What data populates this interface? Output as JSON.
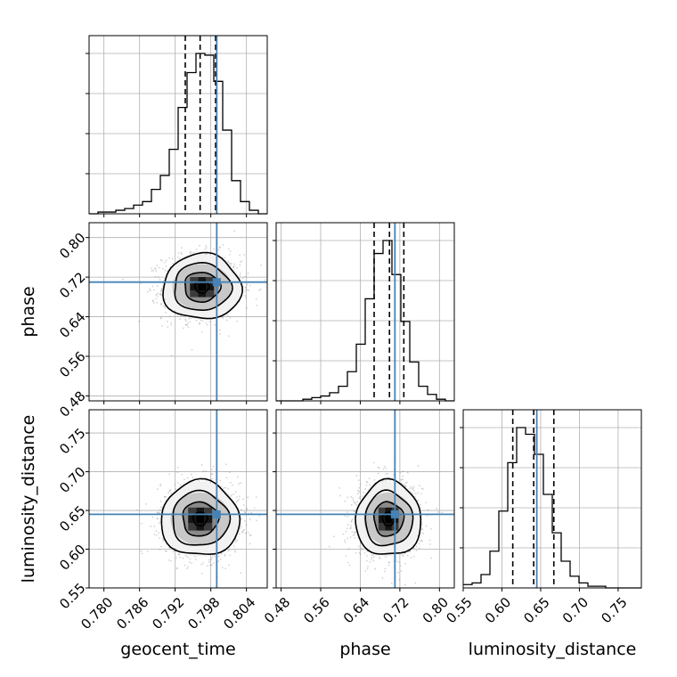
{
  "chart_data": {
    "type": "corner",
    "parameters": [
      {
        "name": "geocent_time",
        "label": "geocent_time",
        "range": [
          0.7775,
          0.8075
        ],
        "ticks": [
          0.78,
          0.786,
          0.792,
          0.798,
          0.804
        ],
        "tick_labels": [
          "0.780",
          "0.786",
          "0.792",
          "0.798",
          "0.804"
        ],
        "truth": 0.799,
        "quantiles": [
          0.7937,
          0.7962,
          0.7988
        ]
      },
      {
        "name": "phase",
        "label": "phase",
        "range": [
          0.47,
          0.83
        ],
        "ticks": [
          0.48,
          0.56,
          0.64,
          0.72,
          0.8
        ],
        "tick_labels": [
          "0.48",
          "0.56",
          "0.64",
          "0.72",
          "0.80"
        ],
        "truth": 0.71,
        "quantiles": [
          0.668,
          0.699,
          0.728
        ]
      },
      {
        "name": "luminosity_distance",
        "label": "luminosity_distance",
        "range": [
          0.55,
          0.78
        ],
        "ticks": [
          0.55,
          0.6,
          0.65,
          0.7,
          0.75
        ],
        "tick_labels": [
          "0.55",
          "0.60",
          "0.65",
          "0.70",
          "0.75"
        ],
        "truth": 0.645,
        "quantiles": [
          0.614,
          0.641,
          0.667
        ]
      }
    ],
    "histograms": [
      {
        "parameter": "geocent_time",
        "bin_edges": [
          0.7775,
          0.779,
          0.7805,
          0.782,
          0.7835,
          0.785,
          0.7865,
          0.788,
          0.7895,
          0.791,
          0.7925,
          0.794,
          0.7955,
          0.797,
          0.7985,
          0.8,
          0.8015,
          0.803,
          0.8045,
          0.806,
          0.8075
        ],
        "counts": [
          0,
          1,
          1,
          2,
          3,
          5,
          7,
          14,
          22,
          37,
          61,
          81,
          92,
          91,
          76,
          48,
          19,
          7,
          2,
          0
        ]
      },
      {
        "parameter": "phase",
        "bin_edges": [
          0.47,
          0.488,
          0.506,
          0.524,
          0.542,
          0.56,
          0.578,
          0.596,
          0.614,
          0.632,
          0.65,
          0.668,
          0.686,
          0.704,
          0.722,
          0.74,
          0.758,
          0.776,
          0.794,
          0.812,
          0.83
        ],
        "counts": [
          0,
          0,
          0,
          1,
          2,
          3,
          5,
          9,
          18,
          35,
          63,
          91,
          99,
          78,
          49,
          24,
          9,
          4,
          1,
          0
        ]
      },
      {
        "parameter": "luminosity_distance",
        "bin_edges": [
          0.55,
          0.5615,
          0.573,
          0.5845,
          0.596,
          0.6075,
          0.619,
          0.6305,
          0.642,
          0.6535,
          0.665,
          0.6765,
          0.688,
          0.6995,
          0.711,
          0.7225,
          0.734,
          0.7455,
          0.757,
          0.7685,
          0.78
        ],
        "counts": [
          2,
          3,
          8,
          22,
          46,
          75,
          96,
          92,
          80,
          56,
          33,
          16,
          7,
          3,
          1,
          1,
          0,
          0,
          0,
          0
        ]
      }
    ],
    "joint": [
      {
        "x": "geocent_time",
        "y": "phase",
        "mean": [
          0.7965,
          0.7
        ],
        "std": [
          0.003,
          0.03
        ]
      },
      {
        "x": "geocent_time",
        "y": "luminosity_distance",
        "mean": [
          0.7962,
          0.639
        ],
        "std": [
          0.003,
          0.022
        ]
      },
      {
        "x": "phase",
        "y": "luminosity_distance",
        "mean": [
          0.697,
          0.639
        ],
        "std": [
          0.03,
          0.022
        ]
      }
    ],
    "contour_levels": [
      "0.5",
      "1.0",
      "1.5",
      "2.0"
    ],
    "grid": true,
    "truth_color": "#4682b4",
    "line_color": "#000000",
    "point_color": "#808080"
  }
}
